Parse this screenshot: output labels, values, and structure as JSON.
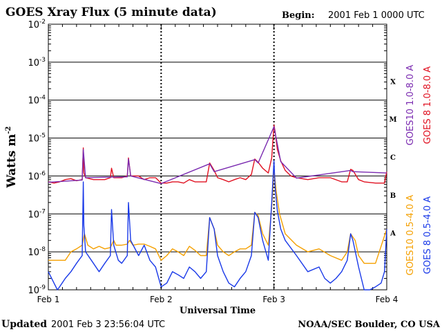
{
  "chart_data": {
    "type": "line",
    "title": "GOES Xray Flux (5 minute data)",
    "begin_label": "Begin:",
    "begin_value": "2001 Feb 1 0000 UTC",
    "xlabel": "Universal Time",
    "ylabel": "Watts m",
    "ylabel_sup": "-2",
    "yscale": "log",
    "ylim": [
      1e-09,
      0.01
    ],
    "xlim": [
      0,
      3
    ],
    "grid": true,
    "x_ticks": [
      {
        "value": 0,
        "label": "Feb 1"
      },
      {
        "value": 1,
        "label": "Feb 2"
      },
      {
        "value": 2,
        "label": "Feb 3"
      },
      {
        "value": 3,
        "label": "Feb 4"
      }
    ],
    "y_ticks": [
      {
        "value": 0.01,
        "base": "10",
        "exp": "-2"
      },
      {
        "value": 0.001,
        "base": "10",
        "exp": "-3"
      },
      {
        "value": 0.0001,
        "base": "10",
        "exp": "-4"
      },
      {
        "value": 1e-05,
        "base": "10",
        "exp": "-5"
      },
      {
        "value": 1e-06,
        "base": "10",
        "exp": "-6"
      },
      {
        "value": 1e-07,
        "base": "10",
        "exp": "-7"
      },
      {
        "value": 1e-08,
        "base": "10",
        "exp": "-8"
      },
      {
        "value": 1e-09,
        "base": "10",
        "exp": "-9"
      }
    ],
    "flare_classes": [
      {
        "label": "X",
        "value": 0.000316
      },
      {
        "label": "M",
        "value": 3.16e-05
      },
      {
        "label": "C",
        "value": 3.16e-06
      },
      {
        "label": "B",
        "value": 3.16e-07
      },
      {
        "label": "A",
        "value": 3.16e-08
      }
    ],
    "legend_right": [
      {
        "name": "GOES10 1.0-8.0 A",
        "color": "#7a2ab0"
      },
      {
        "name": "GOES 8 1.0-8.0 A",
        "color": "#e01020"
      }
    ],
    "legend_bottom": [
      {
        "name": "GOES10 0.5-4.0 A",
        "color": "#f5a000"
      },
      {
        "name": "GOES 8 0.5-4.0 A",
        "color": "#1838e8"
      }
    ],
    "series": [
      {
        "name": "GOES 8 1.0-8.0 A",
        "color": "#e01020",
        "x": [
          0.0,
          0.05,
          0.1,
          0.15,
          0.2,
          0.25,
          0.3,
          0.31,
          0.315,
          0.33,
          0.4,
          0.5,
          0.55,
          0.56,
          0.58,
          0.65,
          0.7,
          0.71,
          0.73,
          0.8,
          0.85,
          0.9,
          0.95,
          1.0,
          1.05,
          1.1,
          1.15,
          1.2,
          1.25,
          1.3,
          1.35,
          1.4,
          1.43,
          1.47,
          1.5,
          1.55,
          1.6,
          1.65,
          1.7,
          1.75,
          1.8,
          1.83,
          1.86,
          1.9,
          1.95,
          1.98,
          2.0,
          2.01,
          2.03,
          2.06,
          2.1,
          2.15,
          2.2,
          2.3,
          2.4,
          2.5,
          2.6,
          2.65,
          2.68,
          2.7,
          2.75,
          2.8,
          2.9,
          2.95,
          2.98,
          3.0
        ],
        "y": [
          7e-07,
          6.5e-07,
          7e-07,
          8e-07,
          8.5e-07,
          7.5e-07,
          8e-07,
          5.5e-06,
          1.2e-06,
          9e-07,
          8e-07,
          8e-07,
          9e-07,
          1.6e-06,
          9e-07,
          9e-07,
          1e-06,
          3e-06,
          1e-06,
          1e-06,
          8e-07,
          9e-07,
          9e-07,
          6.5e-07,
          6.5e-07,
          7e-07,
          7e-07,
          6.5e-07,
          8e-07,
          7e-07,
          7e-07,
          7e-07,
          2.2e-06,
          1.4e-06,
          9e-07,
          8e-07,
          7e-07,
          8e-07,
          9e-07,
          8e-07,
          1.1e-06,
          2.8e-06,
          2.3e-06,
          1.6e-06,
          1.2e-06,
          3e-06,
          2.2e-05,
          1.5e-05,
          5e-06,
          2.5e-06,
          1.4e-06,
          1e-06,
          9e-07,
          8e-07,
          9e-07,
          9e-07,
          7e-07,
          7e-07,
          1.5e-06,
          1.4e-06,
          8e-07,
          7e-07,
          6.5e-07,
          6.5e-07,
          6.5e-07,
          1.3e-06
        ]
      },
      {
        "name": "GOES10 1.0-8.0 A",
        "color": "#7a2ab0",
        "x": [
          0.0,
          0.3,
          0.31,
          0.33,
          0.7,
          0.71,
          0.73,
          1.0,
          1.43,
          1.47,
          1.83,
          1.86,
          2.0,
          2.01,
          2.06,
          2.2,
          2.68,
          2.7,
          3.0
        ],
        "y": [
          6.8e-07,
          7.8e-07,
          5e-06,
          9e-07,
          9.5e-07,
          2.8e-06,
          1e-06,
          6.3e-07,
          2.1e-06,
          1.3e-06,
          2.7e-06,
          2.2e-06,
          2e-05,
          1.4e-05,
          2.4e-06,
          8.8e-07,
          1.4e-06,
          1.3e-06,
          1.2e-06
        ]
      },
      {
        "name": "GOES10 0.5-4.0 A",
        "color": "#f5a000",
        "x": [
          0.0,
          0.05,
          0.1,
          0.15,
          0.2,
          0.25,
          0.3,
          0.32,
          0.35,
          0.4,
          0.45,
          0.5,
          0.55,
          0.58,
          0.6,
          0.65,
          0.7,
          0.72,
          0.75,
          0.8,
          0.85,
          0.9,
          0.95,
          1.0,
          1.05,
          1.1,
          1.15,
          1.2,
          1.25,
          1.3,
          1.35,
          1.4,
          1.43,
          1.47,
          1.5,
          1.55,
          1.6,
          1.65,
          1.7,
          1.75,
          1.8,
          1.83,
          1.86,
          1.9,
          1.95,
          1.98,
          2.0,
          2.02,
          2.05,
          2.1,
          2.2,
          2.3,
          2.4,
          2.5,
          2.6,
          2.65,
          2.68,
          2.72,
          2.75,
          2.8,
          2.9,
          3.0
        ],
        "y": [
          6e-09,
          6e-09,
          6e-09,
          6e-09,
          1e-08,
          1.2e-08,
          1.5e-08,
          3e-08,
          1.5e-08,
          1.2e-08,
          1.4e-08,
          1.2e-08,
          1.3e-08,
          2e-08,
          1.5e-08,
          1.5e-08,
          1.6e-08,
          2e-08,
          1.5e-08,
          1.6e-08,
          1.6e-08,
          1.4e-08,
          1.2e-08,
          6e-09,
          8e-09,
          1.2e-08,
          1e-08,
          8e-09,
          1.4e-08,
          1.1e-08,
          8e-09,
          8e-09,
          8e-08,
          4e-08,
          1.5e-08,
          1e-08,
          8e-09,
          1e-08,
          1.2e-08,
          1.2e-08,
          1.5e-08,
          1.1e-07,
          9e-08,
          3e-08,
          1.5e-08,
          1.5e-07,
          1.5e-06,
          4e-07,
          1e-07,
          3e-08,
          1.5e-08,
          1e-08,
          1.2e-08,
          8e-09,
          6e-09,
          1e-08,
          3e-08,
          2e-08,
          8e-09,
          5e-09,
          5e-09,
          4e-08
        ]
      },
      {
        "name": "GOES 8 0.5-4.0 A",
        "color": "#1838e8",
        "x": [
          0.0,
          0.05,
          0.08,
          0.1,
          0.15,
          0.2,
          0.25,
          0.3,
          0.31,
          0.315,
          0.33,
          0.4,
          0.45,
          0.5,
          0.55,
          0.56,
          0.58,
          0.62,
          0.65,
          0.7,
          0.71,
          0.73,
          0.8,
          0.85,
          0.9,
          0.95,
          1.0,
          1.05,
          1.1,
          1.15,
          1.2,
          1.25,
          1.3,
          1.35,
          1.4,
          1.43,
          1.47,
          1.5,
          1.55,
          1.6,
          1.65,
          1.7,
          1.75,
          1.8,
          1.83,
          1.86,
          1.9,
          1.95,
          1.98,
          2.0,
          2.01,
          2.03,
          2.06,
          2.1,
          2.2,
          2.3,
          2.4,
          2.45,
          2.5,
          2.55,
          2.6,
          2.65,
          2.68,
          2.7,
          2.75,
          2.8,
          2.85,
          2.9,
          2.95,
          2.98,
          3.0
        ],
        "y": [
          3e-09,
          1.5e-09,
          1e-09,
          1.2e-09,
          2e-09,
          3e-09,
          5e-09,
          8e-09,
          7e-07,
          5e-08,
          1e-08,
          5e-09,
          3e-09,
          5e-09,
          8e-09,
          1.3e-07,
          1.5e-08,
          6e-09,
          5e-09,
          8e-09,
          2e-07,
          2e-08,
          8e-09,
          1.5e-08,
          6e-09,
          4e-09,
          1.2e-09,
          1.5e-09,
          3e-09,
          2.5e-09,
          2e-09,
          4e-09,
          3e-09,
          2e-09,
          3e-09,
          8e-08,
          4e-08,
          8e-09,
          3e-09,
          1.5e-09,
          1.2e-09,
          2e-09,
          3e-09,
          8e-09,
          1.1e-07,
          8e-08,
          2e-08,
          6e-09,
          2e-07,
          2.5e-06,
          5e-07,
          1.2e-07,
          4e-08,
          2e-08,
          8e-09,
          3e-09,
          4e-09,
          2e-09,
          1.5e-09,
          2e-09,
          3e-09,
          6e-09,
          3e-08,
          2e-08,
          4e-09,
          1e-09,
          1e-09,
          1.2e-09,
          1.5e-09,
          3e-09,
          4e-08
        ]
      }
    ]
  },
  "footer": {
    "updated_label": "Updated",
    "updated_value": "2001 Feb  3 23:56:04 UTC",
    "source": "NOAA/SEC Boulder, CO USA"
  }
}
